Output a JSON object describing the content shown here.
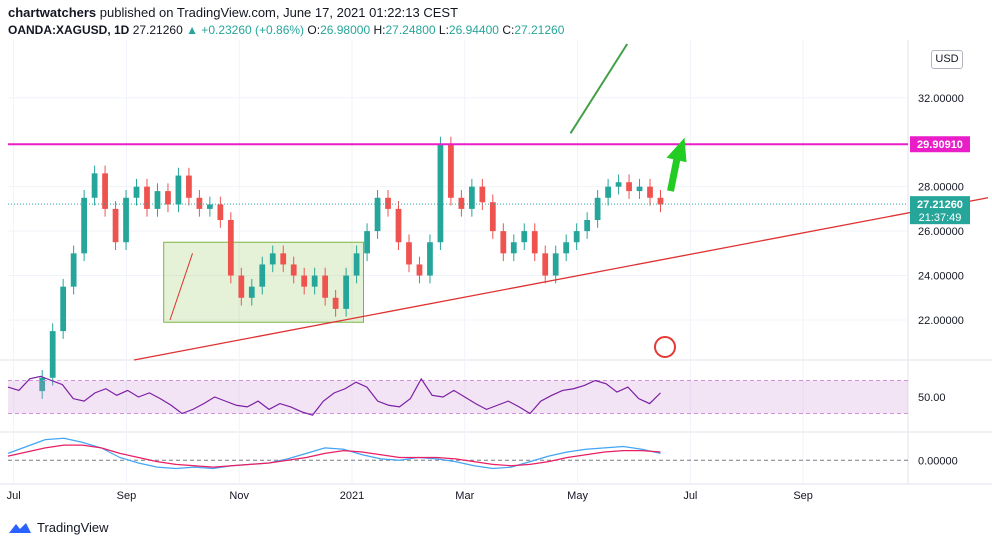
{
  "header": {
    "author": "chartwatchers",
    "published_text": "published on TradingView.com, June 17, 2021 01:22:13 CEST",
    "symbol": "OANDA:XAGUSD, 1D",
    "last": "27.21260",
    "change": "▲ +0.23260 (+0.86%)",
    "o_label": "O:",
    "o_value": "26.98000",
    "h_label": "H:",
    "h_value": "27.24800",
    "l_label": "L:",
    "l_value": "26.94400",
    "c_label": "C:",
    "c_value": "27.21260"
  },
  "currency": "USD",
  "footer": {
    "brand": "TradingView"
  },
  "colors": {
    "up": "#26a69a",
    "down": "#ef5350",
    "resistance": "#e91ec8",
    "trendline": "#e03030",
    "arrow": "#22cc22",
    "rsi": "#7b1fa2",
    "macd": "#e91e63",
    "signal": "#42a5f5"
  },
  "chart_data": [
    {
      "type": "candlestick",
      "title": "OANDA:XAGUSD, 1D",
      "x_ticks": [
        "Jul",
        "Sep",
        "Nov",
        "2021",
        "Mar",
        "May",
        "Jul",
        "Sep"
      ],
      "y_ticks": [
        "22.00000",
        "24.00000",
        "26.00000",
        "28.00000",
        "32.00000"
      ],
      "ylim": [
        20.2,
        34.6
      ],
      "price_labels": {
        "resistance": "29.90910",
        "last": "27.21260",
        "countdown": "21:37:49"
      },
      "resistance_level": 29.9091,
      "last_price": 27.2126,
      "approx_closes": [
        19.4,
        21.5,
        23.5,
        25.0,
        27.5,
        28.6,
        27.0,
        25.5,
        27.5,
        28.0,
        27.0,
        27.8,
        27.2,
        28.5,
        27.5,
        27.0,
        27.2,
        26.5,
        24.0,
        23.0,
        23.5,
        24.5,
        25.0,
        24.5,
        24.0,
        23.5,
        24.0,
        23.0,
        22.5,
        24.0,
        25.0,
        26.0,
        27.5,
        27.0,
        25.5,
        24.5,
        24.0,
        25.5,
        29.9,
        27.5,
        27.0,
        28.0,
        27.3,
        26.0,
        25.0,
        25.5,
        26.0,
        25.0,
        24.0,
        25.0,
        25.5,
        26.0,
        26.5,
        27.5,
        28.0,
        28.2,
        27.8,
        28.0,
        27.5,
        27.2
      ]
    },
    {
      "type": "line",
      "title": "RSI",
      "y_ticks": [
        "50.00"
      ],
      "band": [
        30,
        70
      ],
      "values": [
        62,
        58,
        72,
        75,
        70,
        65,
        48,
        45,
        55,
        60,
        52,
        58,
        50,
        55,
        48,
        40,
        30,
        35,
        42,
        50,
        45,
        40,
        38,
        45,
        35,
        42,
        38,
        32,
        28,
        45,
        55,
        60,
        68,
        62,
        45,
        40,
        38,
        48,
        72,
        52,
        50,
        58,
        50,
        42,
        35,
        40,
        45,
        38,
        30,
        45,
        52,
        58,
        60,
        64,
        70,
        66,
        56,
        62,
        48,
        42,
        55
      ]
    },
    {
      "type": "line",
      "title": "MACD",
      "y_ticks": [
        "0.00000"
      ],
      "series": [
        {
          "values": [
            0.5,
            1.0,
            1.5,
            1.6,
            1.3,
            0.9,
            0.2,
            -0.2,
            -0.5,
            -0.6,
            -0.5,
            -0.6,
            -0.4,
            -0.3,
            -0.2,
            0.1,
            0.5,
            0.9,
            0.8,
            0.4,
            0.1,
            0.0,
            0.2,
            0.1,
            -0.1,
            -0.4,
            -0.6,
            -0.5,
            -0.1,
            0.3,
            0.6,
            0.8,
            0.9,
            1.0,
            0.8,
            0.5
          ]
        },
        {
          "values": [
            0.3,
            0.6,
            0.9,
            1.1,
            1.1,
            0.9,
            0.5,
            0.2,
            -0.1,
            -0.3,
            -0.4,
            -0.5,
            -0.4,
            -0.3,
            -0.2,
            0.0,
            0.2,
            0.5,
            0.7,
            0.6,
            0.4,
            0.2,
            0.2,
            0.2,
            0.1,
            -0.1,
            -0.3,
            -0.4,
            -0.3,
            -0.1,
            0.2,
            0.4,
            0.6,
            0.7,
            0.7,
            0.6
          ]
        }
      ]
    }
  ]
}
